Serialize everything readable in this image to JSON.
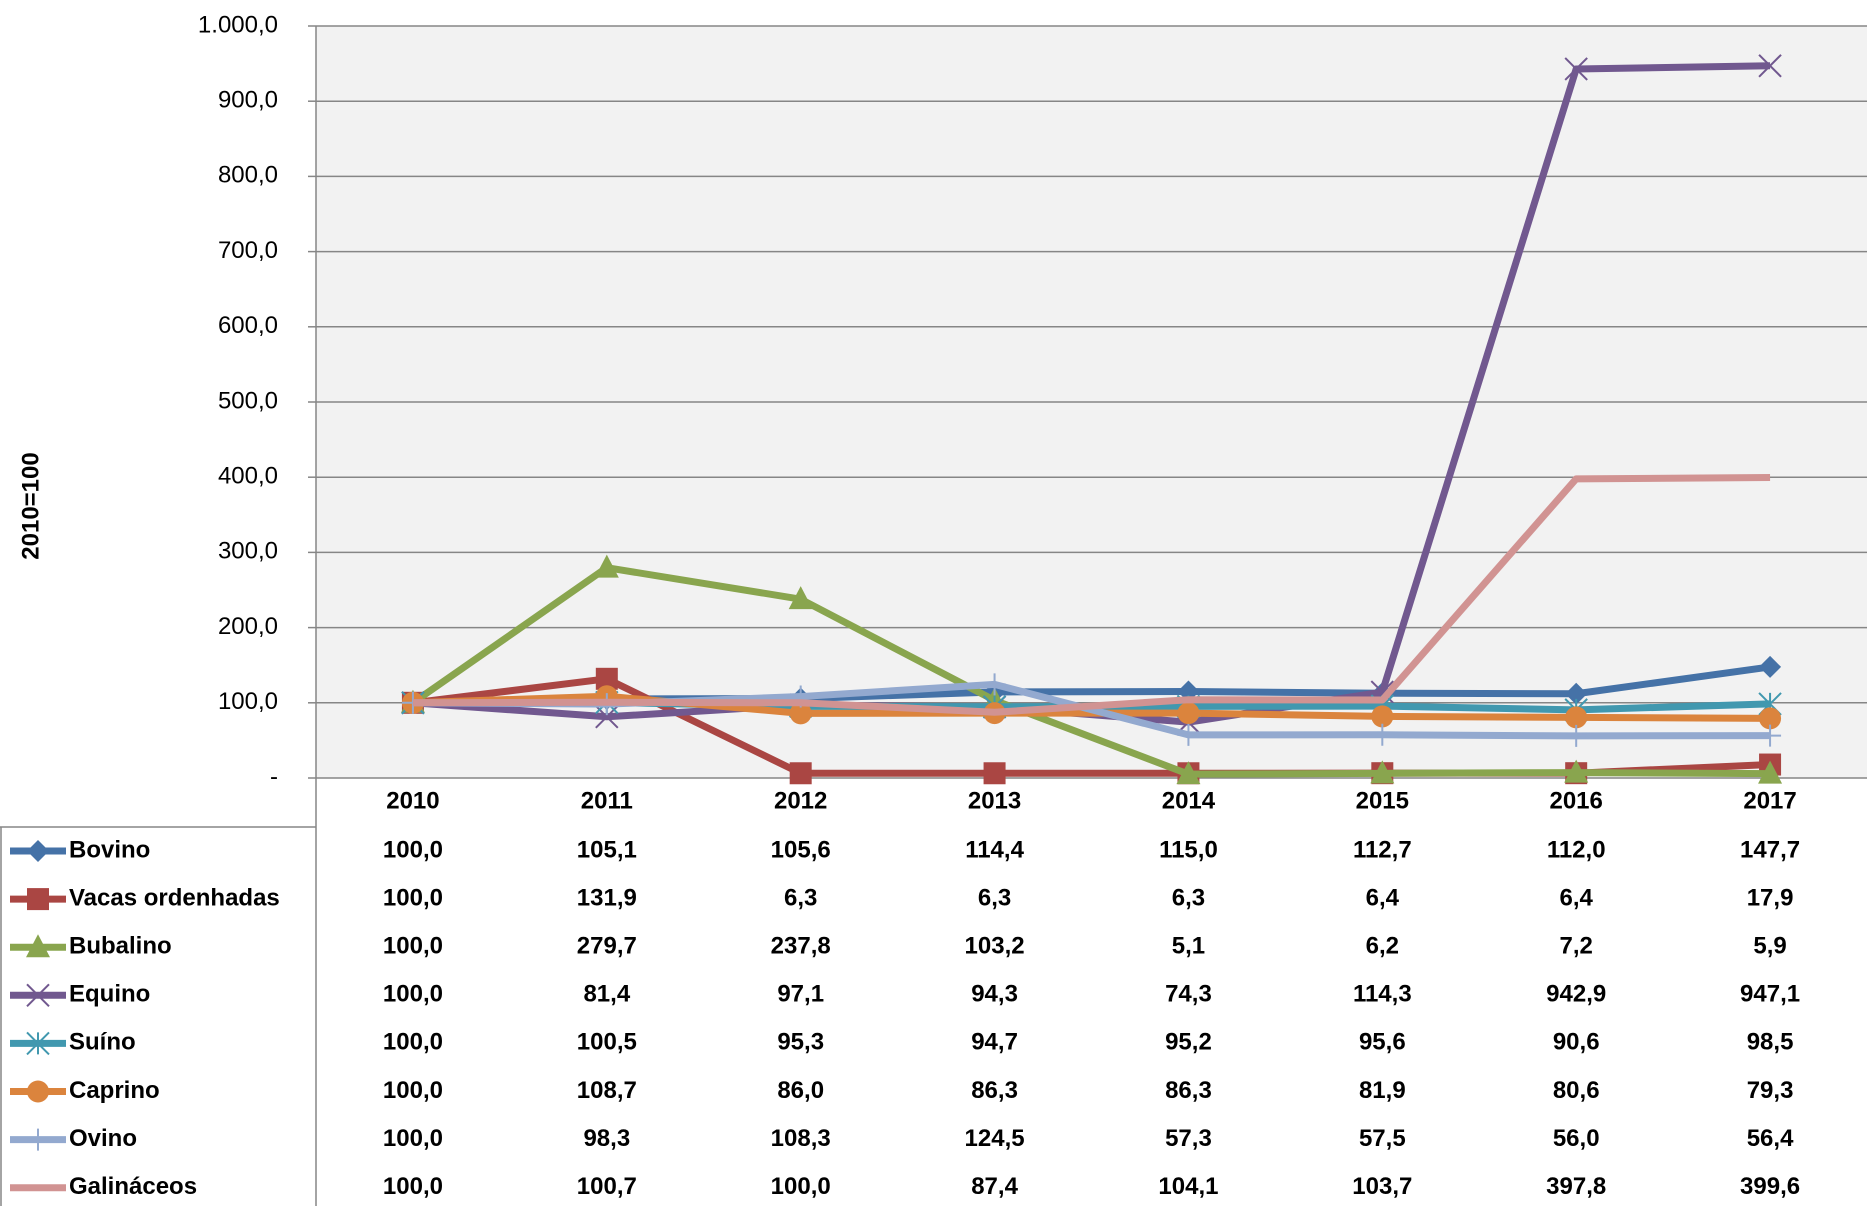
{
  "chart_data": {
    "type": "line",
    "y_axis_label": "2010=100",
    "categories": [
      "2010",
      "2011",
      "2012",
      "2013",
      "2014",
      "2015",
      "2016",
      "2017"
    ],
    "ylim": [
      0,
      1000
    ],
    "yticks": [
      {
        "value": 0,
        "label": "-"
      },
      {
        "value": 100,
        "label": "100,0"
      },
      {
        "value": 200,
        "label": "200,0"
      },
      {
        "value": 300,
        "label": "300,0"
      },
      {
        "value": 400,
        "label": "400,0"
      },
      {
        "value": 500,
        "label": "500,0"
      },
      {
        "value": 600,
        "label": "600,0"
      },
      {
        "value": 700,
        "label": "700,0"
      },
      {
        "value": 800,
        "label": "800,0"
      },
      {
        "value": 900,
        "label": "900,0"
      },
      {
        "value": 1000,
        "label": "1.000,0"
      }
    ],
    "grid": true,
    "series": [
      {
        "name": "Bovino",
        "color": "#4572a7",
        "marker": "diamond",
        "values": [
          100.0,
          105.1,
          105.6,
          114.4,
          115.0,
          112.7,
          112.0,
          147.7
        ],
        "value_labels": [
          "100,0",
          "105,1",
          "105,6",
          "114,4",
          "115,0",
          "112,7",
          "112,0",
          "147,7"
        ]
      },
      {
        "name": "Vacas ordenhadas",
        "color": "#aa4643",
        "marker": "square",
        "values": [
          100.0,
          131.9,
          6.3,
          6.3,
          6.3,
          6.4,
          6.4,
          17.9
        ],
        "value_labels": [
          "100,0",
          "131,9",
          "6,3",
          "6,3",
          "6,3",
          "6,4",
          "6,4",
          "17,9"
        ]
      },
      {
        "name": "Bubalino",
        "color": "#89a54e",
        "marker": "triangle",
        "values": [
          100.0,
          279.7,
          237.8,
          103.2,
          5.1,
          6.2,
          7.2,
          5.9
        ],
        "value_labels": [
          "100,0",
          "279,7",
          "237,8",
          "103,2",
          "5,1",
          "6,2",
          "7,2",
          "5,9"
        ]
      },
      {
        "name": "Equino",
        "color": "#71588f",
        "marker": "x",
        "values": [
          100.0,
          81.4,
          97.1,
          94.3,
          74.3,
          114.3,
          942.9,
          947.1
        ],
        "value_labels": [
          "100,0",
          "81,4",
          "97,1",
          "94,3",
          "74,3",
          "114,3",
          "942,9",
          "947,1"
        ]
      },
      {
        "name": "Suíno",
        "color": "#4198af",
        "marker": "star",
        "values": [
          100.0,
          100.5,
          95.3,
          94.7,
          95.2,
          95.6,
          90.6,
          98.5
        ],
        "value_labels": [
          "100,0",
          "100,5",
          "95,3",
          "94,7",
          "95,2",
          "95,6",
          "90,6",
          "98,5"
        ]
      },
      {
        "name": "Caprino",
        "color": "#db843d",
        "marker": "circle",
        "values": [
          100.0,
          108.7,
          86.0,
          86.3,
          86.3,
          81.9,
          80.6,
          79.3
        ],
        "value_labels": [
          "100,0",
          "108,7",
          "86,0",
          "86,3",
          "86,3",
          "81,9",
          "80,6",
          "79,3"
        ]
      },
      {
        "name": "Ovino",
        "color": "#93a9cf",
        "marker": "plus",
        "values": [
          100.0,
          98.3,
          108.3,
          124.5,
          57.3,
          57.5,
          56.0,
          56.4
        ],
        "value_labels": [
          "100,0",
          "98,3",
          "108,3",
          "124,5",
          "57,3",
          "57,5",
          "56,0",
          "56,4"
        ]
      },
      {
        "name": "Galináceos",
        "color": "#d19392",
        "marker": "none",
        "values": [
          100.0,
          100.7,
          100.0,
          87.4,
          104.1,
          103.7,
          397.8,
          399.6
        ],
        "value_labels": [
          "100,0",
          "100,7",
          "100,0",
          "87,4",
          "104,1",
          "103,7",
          "397,8",
          "399,6"
        ]
      }
    ]
  }
}
